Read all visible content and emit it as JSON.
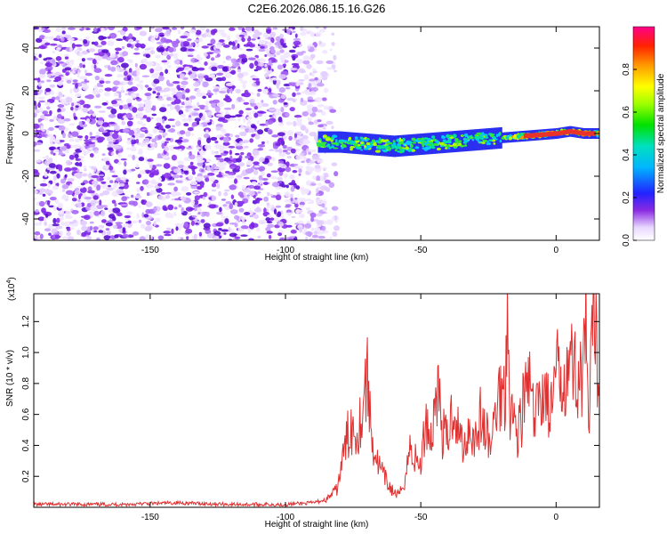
{
  "title": "C2E6.2026.086.15.16.G26",
  "colors": {
    "snr_line": "#e03030",
    "signal_core": "#e8322a",
    "noise": "#7a22e6"
  },
  "chart_data": [
    {
      "type": "heatmap",
      "title": "C2E6.2026.086.15.16.G26",
      "xlabel": "Height of straight line (km)",
      "ylabel": "Frequency (Hz)",
      "xlim": [
        -193,
        16
      ],
      "ylim": [
        -50,
        50
      ],
      "xticks": [
        -150,
        -100,
        -50,
        0
      ],
      "yticks": [
        -40,
        -20,
        0,
        20,
        40
      ],
      "colorbar": {
        "label": "Normalized spectral amplitude",
        "range": [
          0,
          1
        ],
        "ticks": [
          "0.0",
          "0.2",
          "0.4",
          "0.6",
          "0.8"
        ]
      },
      "features": [
        {
          "name": "diffuse noise",
          "x_range": [
            -193,
            -85
          ],
          "freq_range": [
            -50,
            50
          ]
        },
        {
          "name": "tracked signal",
          "x_range": [
            -88,
            16
          ],
          "freq_center": [
            -4,
            -4,
            -5,
            -6,
            -5,
            -4,
            -3,
            -2,
            -1,
            0,
            1,
            0,
            0
          ],
          "freq_center_x": [
            -88,
            -80,
            -70,
            -60,
            -50,
            -40,
            -30,
            -20,
            -10,
            0,
            5,
            10,
            16
          ]
        }
      ]
    },
    {
      "type": "line",
      "xlabel": "Height of straight line (km)",
      "ylabel": "SNR (10 * v/v)",
      "multiplier_label": "(x10",
      "multiplier_exp": "4",
      "multiplier_close": ")",
      "xlim": [
        -193,
        16
      ],
      "ylim": [
        0,
        1.38
      ],
      "xticks": [
        -150,
        -100,
        -50,
        0
      ],
      "yticks": [
        "0.2",
        "0.4",
        "0.6",
        "0.8",
        "1.0",
        "1.2"
      ],
      "x": [
        -193,
        -180,
        -160,
        -140,
        -120,
        -100,
        -90,
        -85,
        -81,
        -78,
        -76,
        -74,
        -72,
        -70,
        -68,
        -66,
        -64,
        -62,
        -60,
        -58,
        -56,
        -54,
        -52,
        -50,
        -48,
        -46,
        -44,
        -42,
        -40,
        -38,
        -36,
        -34,
        -32,
        -30,
        -28,
        -26,
        -24,
        -22,
        -20,
        -19,
        -18,
        -17,
        -16,
        -14,
        -12,
        -10,
        -8,
        -6,
        -4,
        -2,
        0,
        2,
        4,
        6,
        8,
        10,
        11,
        12,
        13,
        14,
        16
      ],
      "values": [
        0.02,
        0.02,
        0.02,
        0.03,
        0.02,
        0.02,
        0.03,
        0.05,
        0.12,
        0.4,
        0.55,
        0.5,
        0.6,
        0.9,
        0.45,
        0.3,
        0.22,
        0.15,
        0.1,
        0.08,
        0.18,
        0.4,
        0.32,
        0.28,
        0.6,
        0.45,
        0.85,
        0.5,
        0.45,
        0.7,
        0.5,
        0.4,
        0.55,
        0.45,
        0.6,
        0.5,
        0.4,
        0.7,
        0.8,
        0.75,
        1.38,
        0.7,
        0.6,
        0.5,
        0.7,
        0.85,
        0.55,
        0.75,
        0.8,
        0.6,
        0.9,
        0.85,
        1.0,
        0.95,
        0.9,
        0.85,
        1.2,
        0.45,
        1.0,
        1.23,
        0.85
      ]
    }
  ]
}
